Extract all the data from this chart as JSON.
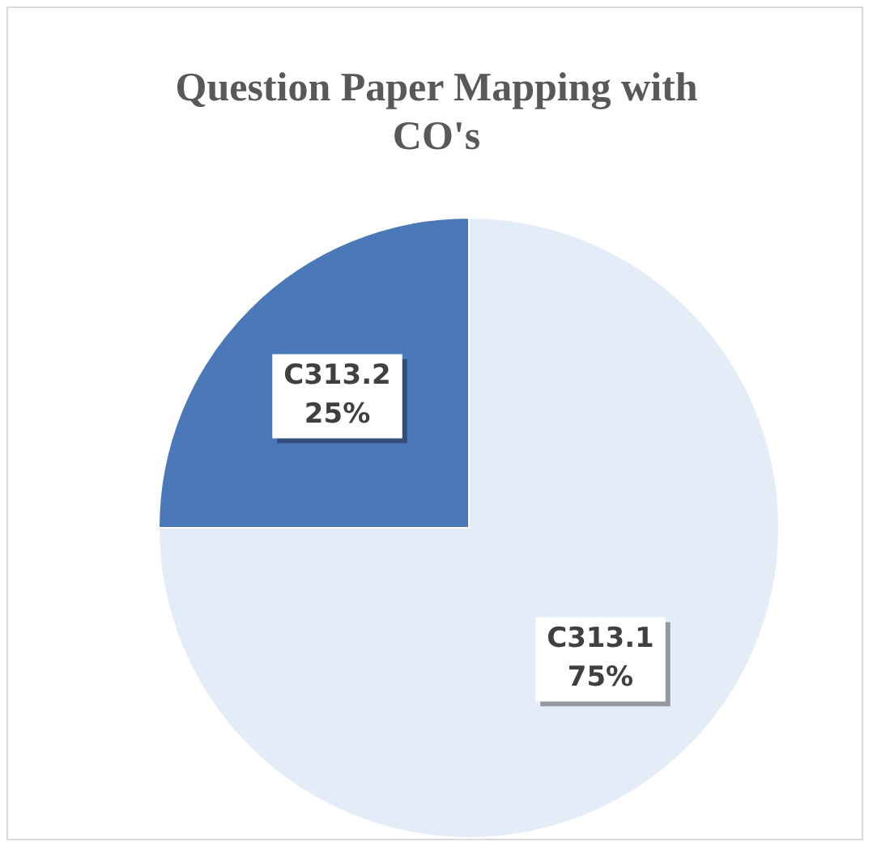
{
  "chart_data": {
    "type": "pie",
    "title": "Question Paper Mapping with CO's",
    "categories": [
      "C313.1",
      "C313.2"
    ],
    "values": [
      75,
      25
    ],
    "value_labels": [
      "75%",
      "25%"
    ],
    "colors": [
      "#e4ecf7",
      "#4a78b8"
    ],
    "legend": false
  }
}
